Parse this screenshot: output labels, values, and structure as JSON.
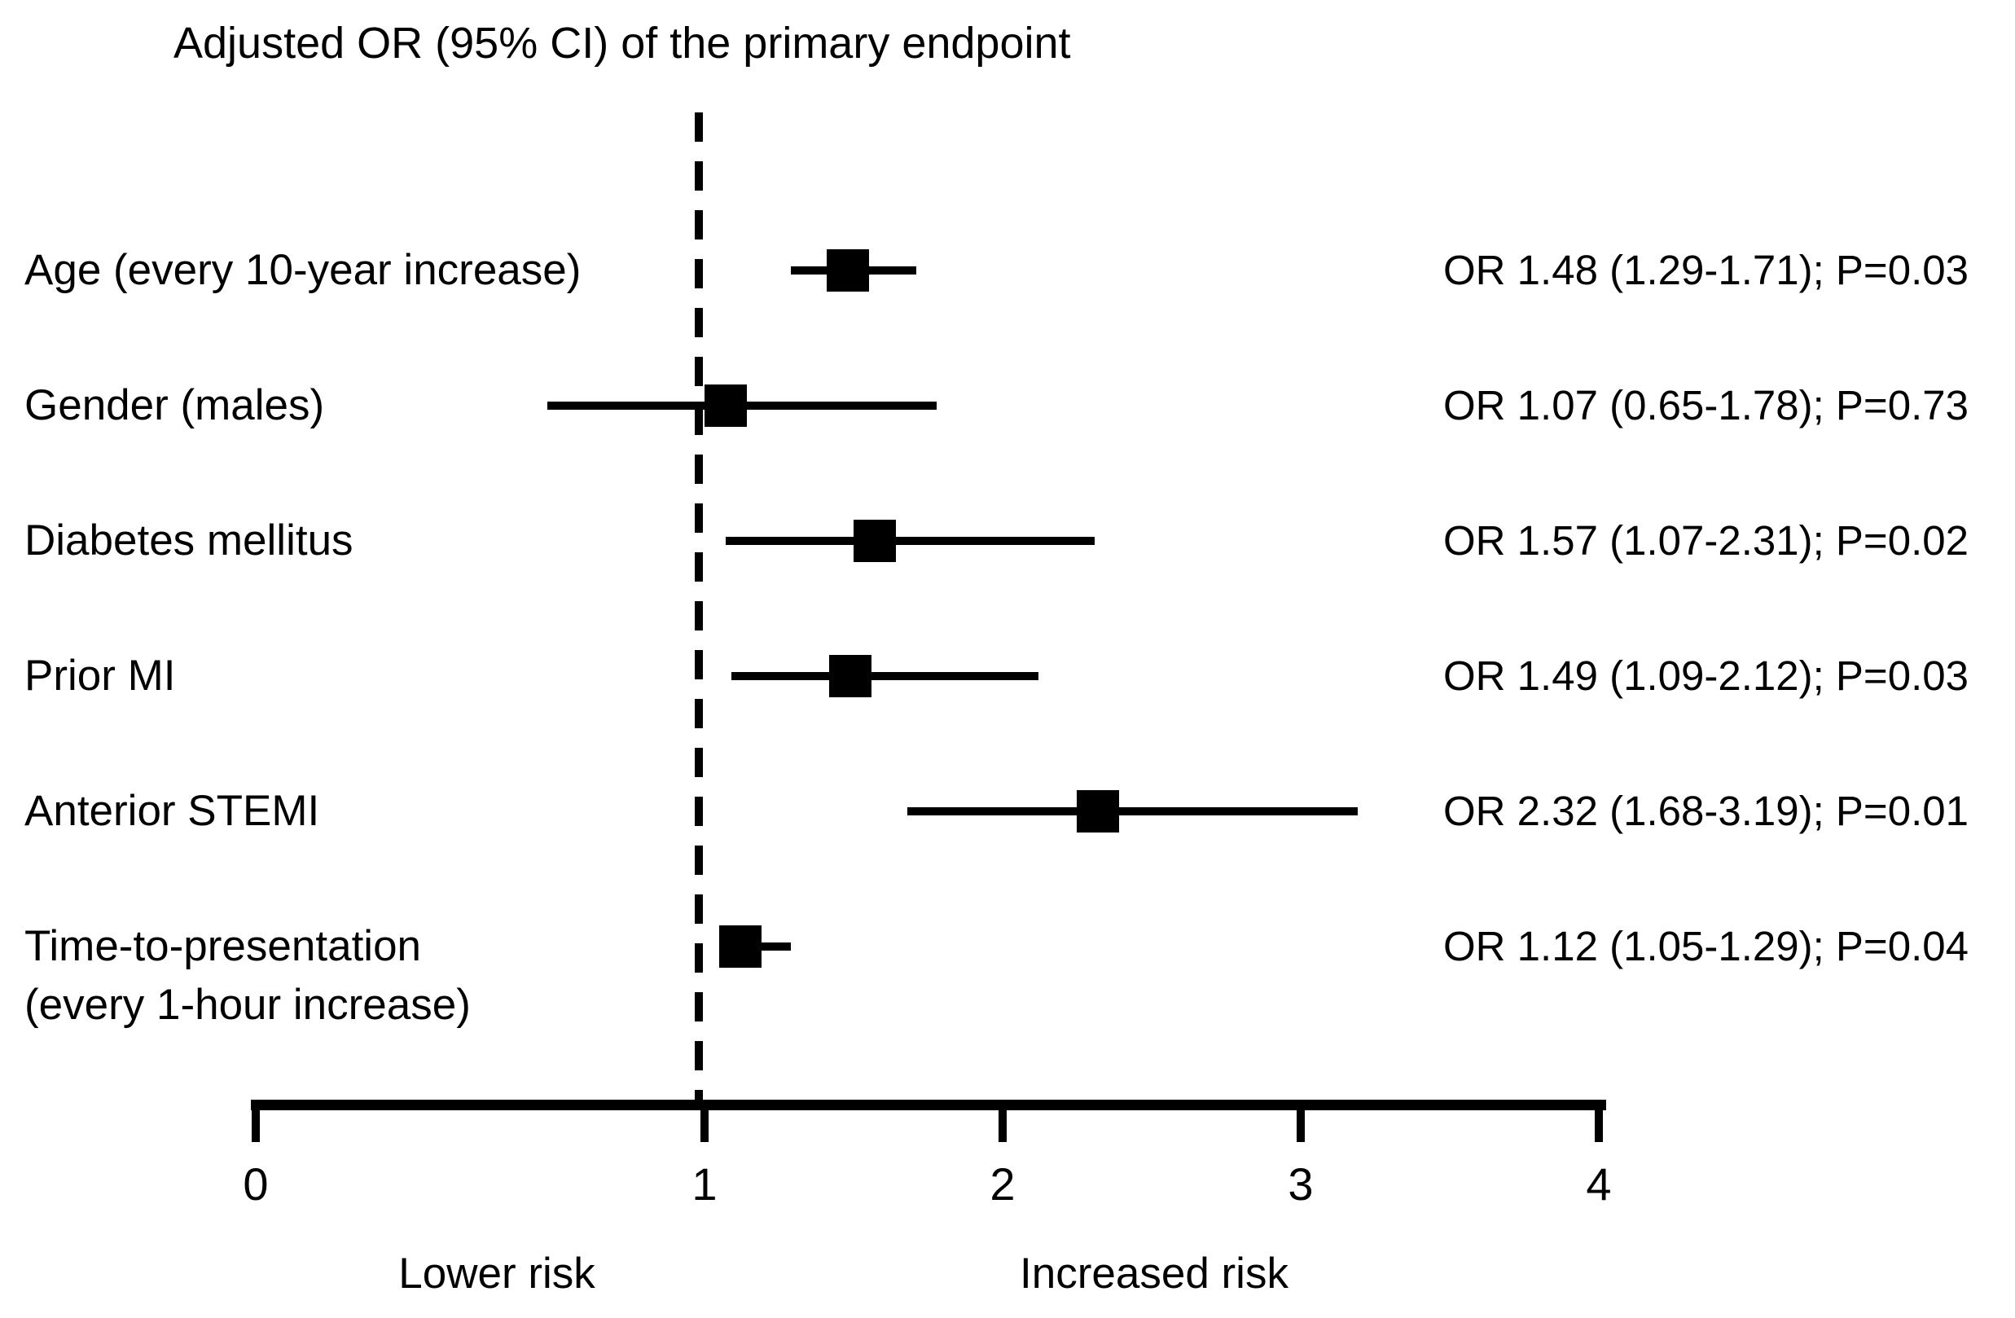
{
  "title": "Adjusted OR (95% CI) of the primary endpoint",
  "chart_data": {
    "type": "forest",
    "title": "Adjusted OR (95% CI) of the primary endpoint",
    "xlim": [
      0,
      4
    ],
    "x_ticks": [
      0,
      1,
      2,
      3,
      4
    ],
    "reference_line": 1,
    "grid": false,
    "marker_color": "#000000",
    "axis_caption_left": "Lower risk",
    "axis_caption_right": "Increased risk",
    "rows": [
      {
        "label": "Age (every 10-year increase)",
        "label_line2": "",
        "or": 1.48,
        "ci_low": 1.29,
        "ci_high": 1.71,
        "p_value": 0.03,
        "annotation": "OR 1.48 (1.29-1.71); P=0.03"
      },
      {
        "label": "Gender (males)",
        "label_line2": "",
        "or": 1.07,
        "ci_low": 0.65,
        "ci_high": 1.78,
        "p_value": 0.73,
        "annotation": "OR 1.07 (0.65-1.78); P=0.73"
      },
      {
        "label": "Diabetes mellitus",
        "label_line2": "",
        "or": 1.57,
        "ci_low": 1.07,
        "ci_high": 2.31,
        "p_value": 0.02,
        "annotation": "OR 1.57 (1.07-2.31); P=0.02"
      },
      {
        "label": "Prior MI",
        "label_line2": "",
        "or": 1.49,
        "ci_low": 1.09,
        "ci_high": 2.12,
        "p_value": 0.03,
        "annotation": "OR 1.49 (1.09-2.12); P=0.03"
      },
      {
        "label": "Anterior STEMI",
        "label_line2": "",
        "or": 2.32,
        "ci_low": 1.68,
        "ci_high": 3.19,
        "p_value": 0.01,
        "annotation": "OR 2.32 (1.68-3.19); P=0.01"
      },
      {
        "label": "Time-to-presentation",
        "label_line2": "(every 1-hour increase)",
        "or": 1.12,
        "ci_low": 1.05,
        "ci_high": 1.29,
        "p_value": 0.04,
        "annotation": "OR 1.12 (1.05-1.29); P=0.04"
      }
    ]
  }
}
